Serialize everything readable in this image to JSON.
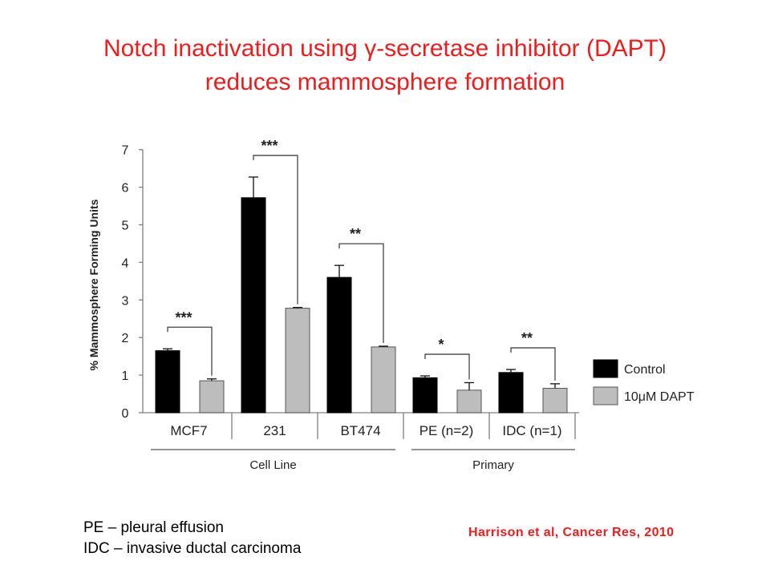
{
  "slide": {
    "title_line1": "Notch inactivation using γ-secretase inhibitor (DAPT)",
    "title_line2": "reduces mammosphere formation",
    "footnote1": "PE – pleural effusion",
    "footnote2": "IDC – invasive ductal carcinoma",
    "citation": "Harrison et al, Cancer Res, 2010"
  },
  "colors": {
    "title": "#ee1c1c",
    "control": "#000000",
    "dapt": "#bdbdbd",
    "axis": "#808080"
  },
  "chart_data": {
    "type": "bar",
    "ylabel": "% Mammosphere Forming Units",
    "ylim": [
      0,
      7
    ],
    "yticks": [
      "0",
      "1",
      "2",
      "3",
      "4",
      "5",
      "6",
      "7"
    ],
    "categories": [
      "MCF7",
      "231",
      "BT474",
      "PE (n=2)",
      "IDC (n=1)"
    ],
    "groups": [
      {
        "label": "Cell Line",
        "categories": [
          "MCF7",
          "231",
          "BT474"
        ]
      },
      {
        "label": "Primary",
        "categories": [
          "PE (n=2)",
          "IDC (n=1)"
        ]
      }
    ],
    "series": [
      {
        "name": "Control",
        "values": [
          1.65,
          5.72,
          3.6,
          0.93,
          1.07
        ],
        "errors": [
          0.05,
          0.55,
          0.32,
          0.05,
          0.08
        ]
      },
      {
        "name": "10μM DAPT",
        "values": [
          0.85,
          2.78,
          1.75,
          0.6,
          0.65
        ],
        "errors": [
          0.05,
          0.02,
          0.02,
          0.2,
          0.12
        ]
      }
    ],
    "significance": [
      "***",
      "***",
      "**",
      "*",
      "**"
    ],
    "legend_position": "right",
    "grid": false
  }
}
